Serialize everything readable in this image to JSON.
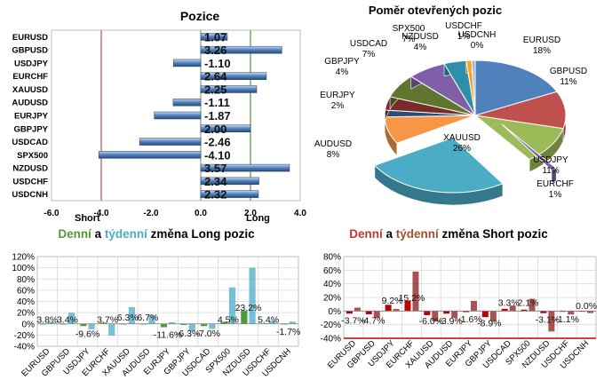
{
  "chart_data": [
    {
      "type": "bar",
      "orientation": "horizontal",
      "title": "Pozice",
      "categories": [
        "EURUSD",
        "GBPUSD",
        "USDJPY",
        "EURCHF",
        "XAUUSD",
        "AUDUSD",
        "EURJPY",
        "GBPJPY",
        "USDCAD",
        "SPX500",
        "NZDUSD",
        "USDCHF",
        "USDCNH"
      ],
      "values": [
        1.07,
        3.26,
        -1.1,
        2.64,
        2.25,
        -1.11,
        -1.87,
        2.0,
        -2.46,
        -4.1,
        3.57,
        2.34,
        2.32
      ],
      "value_labels": [
        "1.07",
        "3.26",
        "-1.10",
        "2.64",
        "2.25",
        "-1.11",
        "-1.87",
        "2.00",
        "-2.46",
        "-4.10",
        "3.57",
        "2.34",
        "2.32"
      ],
      "xlim": [
        -6.0,
        4.0
      ],
      "xticks": [
        "-6.0",
        "-4.0",
        "-2.0",
        "0.0",
        "2.0",
        "4.0"
      ],
      "reference_lines": {
        "short": -4.0,
        "long": 2.0
      },
      "annotations": {
        "short": "Short",
        "long": "Long"
      },
      "colors": {
        "bar": "#4f81bd",
        "short_line": "#c0504d",
        "long_line": "#4f9a3a"
      }
    },
    {
      "type": "pie",
      "title": "Poměr  otevřených pozic",
      "slices": [
        {
          "label": "EURUSD",
          "pct": "18%",
          "value": 18,
          "color": "#4f81bd"
        },
        {
          "label": "GBPUSD",
          "pct": "11%",
          "value": 11,
          "color": "#c0504d"
        },
        {
          "label": "USDJPY",
          "pct": "11%",
          "value": 11,
          "color": "#9bbb59"
        },
        {
          "label": "EURCHF",
          "pct": "1%",
          "value": 1,
          "color": "#8064a2"
        },
        {
          "label": "XAUUSD",
          "pct": "26%",
          "value": 26,
          "color": "#4bacc6"
        },
        {
          "label": "AUDUSD",
          "pct": "8%",
          "value": 8,
          "color": "#f79646"
        },
        {
          "label": "EURJPY",
          "pct": "2%",
          "value": 2,
          "color": "#2c4d75"
        },
        {
          "label": "GBPJPY",
          "pct": "4%",
          "value": 4,
          "color": "#772c2a"
        },
        {
          "label": "USDCAD",
          "pct": "7%",
          "value": 7,
          "color": "#5f7530"
        },
        {
          "label": "SPX500",
          "pct": "7%",
          "value": 7,
          "color": "#7f60a8"
        },
        {
          "label": "NZDUSD",
          "pct": "4%",
          "value": 4,
          "color": "#2f8fa8"
        },
        {
          "label": "USDCHF",
          "pct": "1%",
          "value": 1,
          "color": "#f5a623"
        },
        {
          "label": "USDCNH",
          "pct": "0%",
          "value": 0,
          "color": "#95b3d7"
        }
      ]
    },
    {
      "type": "bar",
      "title_parts": [
        {
          "text": "Denní",
          "color": "#4f9a3a"
        },
        {
          "text": " a ",
          "color": "#000000"
        },
        {
          "text": "týdenní",
          "color": "#4bacc6"
        },
        {
          "text": " změna Long pozic",
          "color": "#000000"
        }
      ],
      "categories": [
        "EURUSD",
        "GBPUSD",
        "USDJPY",
        "EURCHF",
        "XAUUSD",
        "AUDUSD",
        "EURJPY",
        "GBPJPY",
        "USDCAD",
        "SPX500",
        "NZDUSD",
        "USDCHF",
        "USDCNH"
      ],
      "series": [
        {
          "name": "Denní",
          "color": "#4f9a3a",
          "values": [
            0,
            0,
            -4,
            2,
            0,
            0,
            -6,
            -2,
            -4,
            3,
            23.2,
            1,
            0
          ]
        },
        {
          "name": "týdenní",
          "color": "#4bacc6",
          "values": [
            3.8,
            20,
            -9.6,
            -21,
            30,
            15,
            3,
            -13,
            -9,
            65,
            100,
            5.4,
            4
          ]
        }
      ],
      "data_labels": [
        {
          "cat": "EURUSD",
          "text": "3.8%",
          "y": 8
        },
        {
          "cat": "GBPUSD",
          "text": "3.4%",
          "y": 8
        },
        {
          "cat": "USDJPY",
          "text": "-9.6%",
          "y": -17
        },
        {
          "cat": "EURCHF",
          "text": "3.7%",
          "y": 8
        },
        {
          "cat": "XAUUSD",
          "text": "6.3%",
          "y": 12
        },
        {
          "cat": "AUDUSD",
          "text": "6.7%",
          "y": 12
        },
        {
          "cat": "EURJPY",
          "text": "-11.6%",
          "y": -19
        },
        {
          "cat": "GBPJPY",
          "text": "-6.3%",
          "y": -16
        },
        {
          "cat": "USDCAD",
          "text": "-7.0%",
          "y": -16
        },
        {
          "cat": "SPX500",
          "text": "4.5%",
          "y": 8
        },
        {
          "cat": "NZDUSD",
          "text": "23.2%",
          "y": 30
        },
        {
          "cat": "USDCHF",
          "text": "5.4%",
          "y": 8
        },
        {
          "cat": "USDCNH",
          "text": "-1.7%",
          "y": -13
        }
      ],
      "ylim": [
        -40,
        120
      ],
      "yticks": [
        "-40%",
        "-20%",
        "0%",
        "20%",
        "40%",
        "60%",
        "80%",
        "100%",
        "120%"
      ],
      "grid": true
    },
    {
      "type": "bar",
      "title_parts": [
        {
          "text": "Denní",
          "color": "#c0392b"
        },
        {
          "text": " a ",
          "color": "#000000"
        },
        {
          "text": "týdenní",
          "color": "#a0522d"
        },
        {
          "text": " změna Short pozic",
          "color": "#000000"
        }
      ],
      "categories": [
        "EURUSD",
        "GBPUSD",
        "USDJPY",
        "EURCHF",
        "XAUUSD",
        "AUDUSD",
        "EURJPY",
        "GBPJPY",
        "USDCAD",
        "SPX500",
        "NZDUSD",
        "USDCHF",
        "USDCNH"
      ],
      "series": [
        {
          "name": "Denní",
          "color": "#c00000",
          "values": [
            -3.7,
            -4.7,
            9.2,
            15.2,
            -6,
            -3.9,
            -1.6,
            -8.9,
            3.3,
            2.1,
            -3.1,
            -1.1,
            0
          ]
        },
        {
          "name": "týdenní",
          "color": "#8b1a1a",
          "values": [
            5,
            -10,
            3,
            58,
            -15,
            -10,
            15,
            -15,
            8,
            18,
            -30,
            -5,
            -3
          ]
        }
      ],
      "data_labels": [
        {
          "cat": "EURUSD",
          "text": "-3.7%",
          "y": -13
        },
        {
          "cat": "GBPUSD",
          "text": "-4.7%",
          "y": -13
        },
        {
          "cat": "USDJPY",
          "text": "9.2%",
          "y": 16
        },
        {
          "cat": "EURCHF",
          "text": "15.2%",
          "y": 20
        },
        {
          "cat": "XAUUSD",
          "text": "-6.0%",
          "y": -14
        },
        {
          "cat": "AUDUSD",
          "text": "-3.9%",
          "y": -14
        },
        {
          "cat": "EURJPY",
          "text": "-1.6%",
          "y": -11
        },
        {
          "cat": "GBPJPY",
          "text": "-8.9%",
          "y": -17
        },
        {
          "cat": "USDCAD",
          "text": "3.3%",
          "y": 13
        },
        {
          "cat": "SPX500",
          "text": "2.1%",
          "y": 13
        },
        {
          "cat": "NZDUSD",
          "text": "-3.1%",
          "y": -12
        },
        {
          "cat": "USDCHF",
          "text": "-1.1%",
          "y": -11
        },
        {
          "cat": "USDCNH",
          "text": "0.0%",
          "y": 8
        }
      ],
      "ylim": [
        -40,
        80
      ],
      "yticks": [
        "-40%",
        "-20%",
        "0%",
        "20%",
        "40%",
        "60%",
        "80%"
      ],
      "grid": true
    }
  ]
}
